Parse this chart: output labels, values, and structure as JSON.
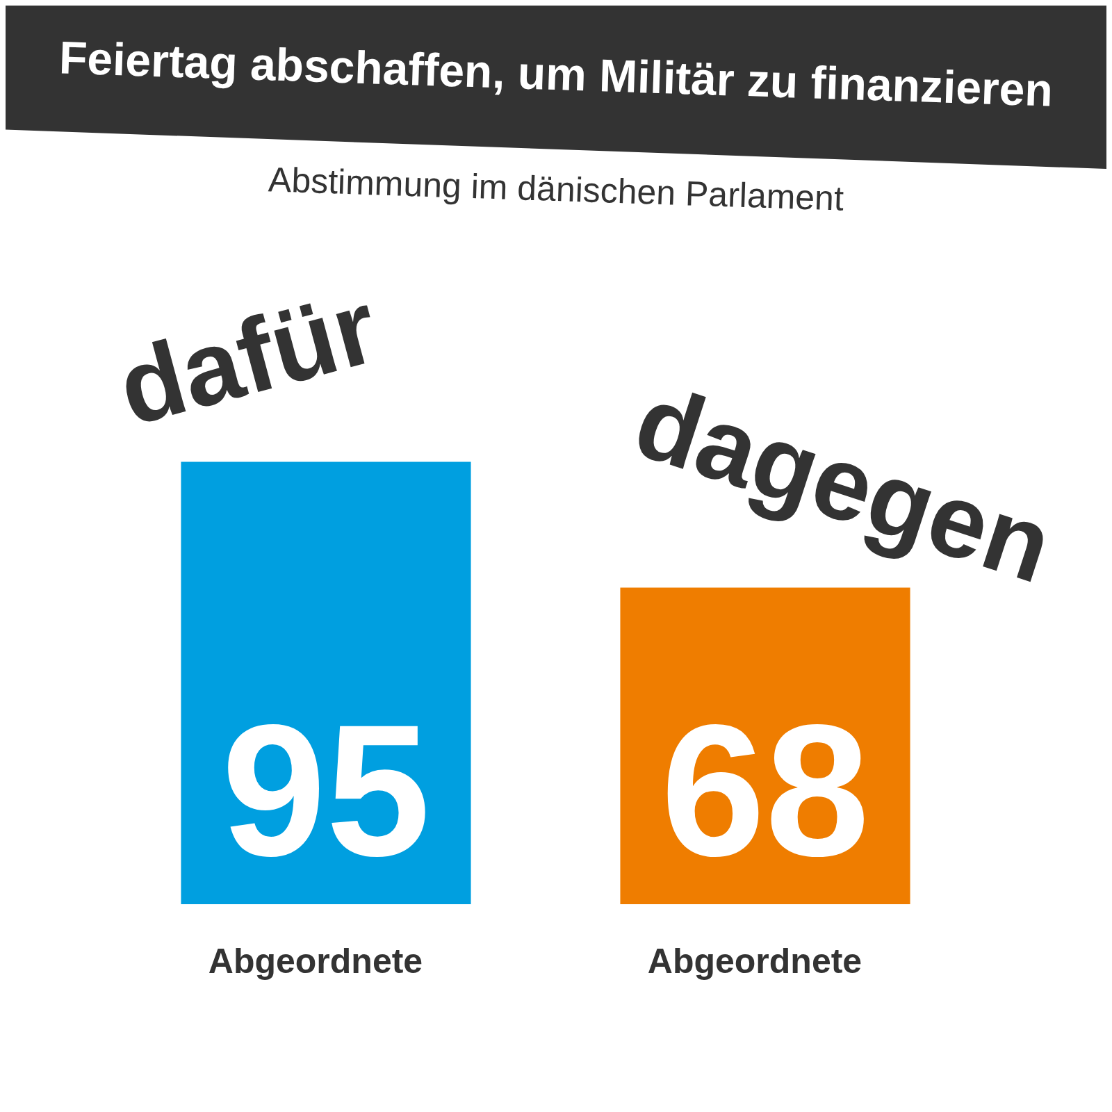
{
  "chart_data": {
    "type": "bar",
    "title": "Feiertag abschaffen, um Militär zu finanzieren",
    "subtitle": "Abstimmung im dänischen Parlament",
    "categories": [
      "dafür",
      "dagegen"
    ],
    "values": [
      95,
      68
    ],
    "colors": [
      "#009fe0",
      "#ef7d00"
    ],
    "data_labels": true,
    "legend": false,
    "annotations": [
      "Abgeordnete",
      "Abgeordnete"
    ]
  }
}
